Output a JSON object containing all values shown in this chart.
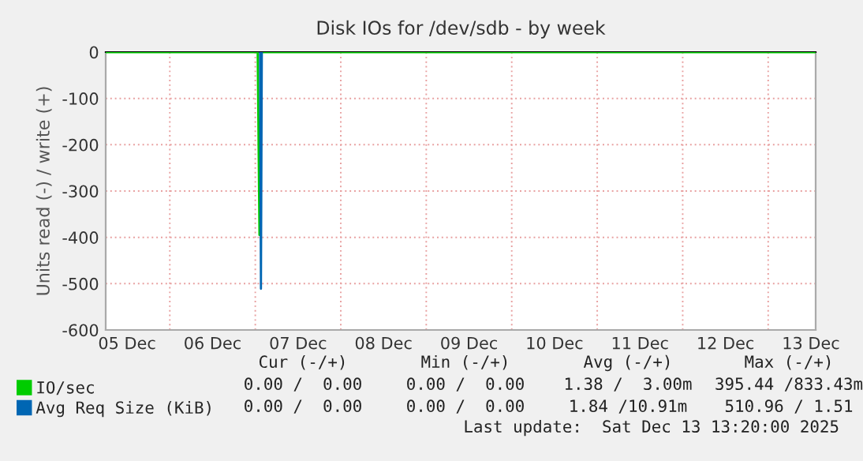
{
  "chart_data": {
    "type": "line",
    "title": "Disk IOs for /dev/sdb - by week",
    "ylabel": "Units read (-) / write (+)",
    "series": [
      {
        "name": "IO/sec",
        "color": "#00cc00",
        "x": [
          "2025-12-05T06:00",
          "2025-12-07T00:40",
          "2025-12-07T01:10",
          "2025-12-07T01:40",
          "2025-12-13T13:20"
        ],
        "values": [
          0,
          0,
          -395,
          0,
          0
        ]
      },
      {
        "name": "Avg Req Size (KiB)",
        "color": "#0066b3",
        "x": [
          "2025-12-07T01:20",
          "2025-12-07T01:35",
          "2025-12-07T01:50"
        ],
        "values": [
          0,
          -511,
          0
        ]
      }
    ],
    "xlim": [
      "2025-12-05T06:00",
      "2025-12-13T13:20"
    ],
    "xticks": [
      {
        "value": "2025-12-05T12:00",
        "label": "05 Dec"
      },
      {
        "value": "2025-12-06T00:00",
        "label": null
      },
      {
        "value": "2025-12-06T12:00",
        "label": "06 Dec"
      },
      {
        "value": "2025-12-07T00:00",
        "label": null
      },
      {
        "value": "2025-12-07T12:00",
        "label": "07 Dec"
      },
      {
        "value": "2025-12-08T00:00",
        "label": null
      },
      {
        "value": "2025-12-08T12:00",
        "label": "08 Dec"
      },
      {
        "value": "2025-12-09T00:00",
        "label": null
      },
      {
        "value": "2025-12-09T12:00",
        "label": "09 Dec"
      },
      {
        "value": "2025-12-10T00:00",
        "label": null
      },
      {
        "value": "2025-12-10T12:00",
        "label": "10 Dec"
      },
      {
        "value": "2025-12-11T00:00",
        "label": null
      },
      {
        "value": "2025-12-11T12:00",
        "label": "11 Dec"
      },
      {
        "value": "2025-12-12T00:00",
        "label": null
      },
      {
        "value": "2025-12-12T12:00",
        "label": "12 Dec"
      },
      {
        "value": "2025-12-13T00:00",
        "label": null
      },
      {
        "value": "2025-12-13T12:00",
        "label": "13 Dec"
      }
    ],
    "ylim": [
      -600,
      0
    ],
    "yticks": [
      0,
      -100,
      -200,
      -300,
      -400,
      -500,
      -600
    ],
    "grid": true,
    "legend": "bottom left",
    "marker": "none",
    "line_style": "solid",
    "annotations": [
      "Cur (-/+)",
      "Min (-/+)",
      "Avg (-/+)",
      "Max (-/+)",
      "0.00 /  0.00",
      "0.00 /  0.00",
      "1.38 /  3.00m",
      "395.44 /833.43m",
      "0.00 /  0.00",
      "0.00 /  0.00",
      "1.84 /10.91m",
      "510.96 / 1.51",
      "Last update:  Sat Dec 13 13:20:00 2025"
    ]
  }
}
